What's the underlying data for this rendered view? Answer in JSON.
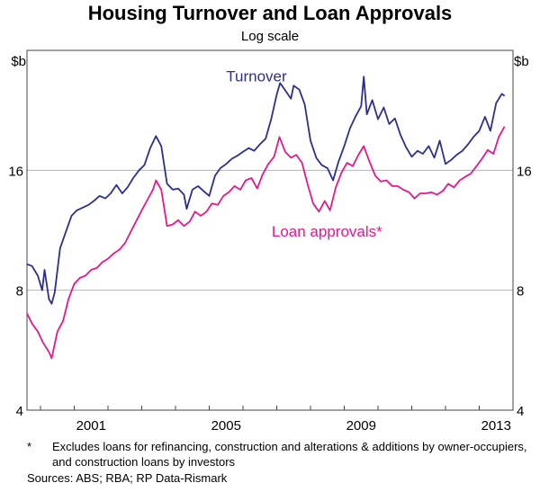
{
  "chart_data": {
    "type": "line",
    "title": "Housing Turnover and Loan Approvals",
    "subtitle": "Log scale",
    "y_unit": "$b",
    "y_scale": "log",
    "ylim": [
      4,
      32
    ],
    "y_ticks": [
      4,
      8,
      16
    ],
    "xlim": [
      1999.6,
      2014.0
    ],
    "x_ticks": [
      2001,
      2005,
      2009,
      2013
    ],
    "grid": "horizontal",
    "series": [
      {
        "name": "Turnover",
        "color": "#2b2f8f",
        "points": [
          [
            1999.6,
            9.3
          ],
          [
            1999.75,
            9.2
          ],
          [
            1999.92,
            8.7
          ],
          [
            2000.05,
            8.0
          ],
          [
            2000.12,
            9.0
          ],
          [
            2000.25,
            7.6
          ],
          [
            2000.33,
            7.4
          ],
          [
            2000.42,
            7.9
          ],
          [
            2000.58,
            10.2
          ],
          [
            2000.75,
            11.2
          ],
          [
            2000.92,
            12.3
          ],
          [
            2001.08,
            12.7
          ],
          [
            2001.25,
            12.9
          ],
          [
            2001.42,
            13.1
          ],
          [
            2001.58,
            13.4
          ],
          [
            2001.75,
            13.8
          ],
          [
            2001.92,
            13.6
          ],
          [
            2002.08,
            14.0
          ],
          [
            2002.25,
            14.7
          ],
          [
            2002.42,
            14.0
          ],
          [
            2002.58,
            14.5
          ],
          [
            2002.75,
            15.3
          ],
          [
            2002.92,
            16.0
          ],
          [
            2003.08,
            16.5
          ],
          [
            2003.25,
            18.2
          ],
          [
            2003.42,
            19.5
          ],
          [
            2003.58,
            18.4
          ],
          [
            2003.75,
            14.8
          ],
          [
            2003.92,
            14.3
          ],
          [
            2004.08,
            14.4
          ],
          [
            2004.25,
            13.9
          ],
          [
            2004.33,
            12.8
          ],
          [
            2004.5,
            14.3
          ],
          [
            2004.67,
            14.6
          ],
          [
            2004.83,
            14.2
          ],
          [
            2005.0,
            13.8
          ],
          [
            2005.17,
            15.5
          ],
          [
            2005.33,
            16.2
          ],
          [
            2005.5,
            16.6
          ],
          [
            2005.67,
            17.1
          ],
          [
            2005.83,
            17.4
          ],
          [
            2006.0,
            17.8
          ],
          [
            2006.17,
            18.2
          ],
          [
            2006.33,
            17.9
          ],
          [
            2006.5,
            18.6
          ],
          [
            2006.67,
            19.2
          ],
          [
            2006.83,
            21.4
          ],
          [
            2007.0,
            24.8
          ],
          [
            2007.1,
            26.5
          ],
          [
            2007.25,
            25.4
          ],
          [
            2007.42,
            24.2
          ],
          [
            2007.5,
            26.1
          ],
          [
            2007.67,
            25.5
          ],
          [
            2007.83,
            23.4
          ],
          [
            2008.0,
            19.0
          ],
          [
            2008.17,
            17.2
          ],
          [
            2008.33,
            16.5
          ],
          [
            2008.5,
            16.2
          ],
          [
            2008.67,
            15.1
          ],
          [
            2008.83,
            16.8
          ],
          [
            2009.0,
            18.4
          ],
          [
            2009.17,
            20.4
          ],
          [
            2009.33,
            21.8
          ],
          [
            2009.5,
            23.2
          ],
          [
            2009.58,
            27.5
          ],
          [
            2009.67,
            22.1
          ],
          [
            2009.83,
            24.0
          ],
          [
            2010.0,
            21.5
          ],
          [
            2010.17,
            23.0
          ],
          [
            2010.33,
            20.9
          ],
          [
            2010.5,
            21.6
          ],
          [
            2010.67,
            19.6
          ],
          [
            2010.83,
            18.3
          ],
          [
            2011.0,
            17.3
          ],
          [
            2011.17,
            17.9
          ],
          [
            2011.33,
            17.6
          ],
          [
            2011.5,
            18.4
          ],
          [
            2011.67,
            17.2
          ],
          [
            2011.83,
            19.0
          ],
          [
            2012.0,
            16.6
          ],
          [
            2012.17,
            17.0
          ],
          [
            2012.33,
            17.5
          ],
          [
            2012.5,
            17.9
          ],
          [
            2012.67,
            18.6
          ],
          [
            2012.83,
            19.4
          ],
          [
            2013.0,
            20.1
          ],
          [
            2013.17,
            21.8
          ],
          [
            2013.33,
            20.1
          ],
          [
            2013.5,
            23.6
          ],
          [
            2013.67,
            24.9
          ],
          [
            2013.75,
            24.6
          ]
        ]
      },
      {
        "name": "Loan approvals*",
        "color": "#e8178c",
        "points": [
          [
            1999.6,
            7.0
          ],
          [
            1999.75,
            6.6
          ],
          [
            1999.92,
            6.3
          ],
          [
            2000.08,
            5.9
          ],
          [
            2000.25,
            5.6
          ],
          [
            2000.33,
            5.4
          ],
          [
            2000.5,
            6.3
          ],
          [
            2000.67,
            6.7
          ],
          [
            2000.83,
            7.6
          ],
          [
            2001.0,
            8.3
          ],
          [
            2001.17,
            8.6
          ],
          [
            2001.33,
            8.7
          ],
          [
            2001.5,
            9.0
          ],
          [
            2001.67,
            9.1
          ],
          [
            2001.83,
            9.4
          ],
          [
            2002.0,
            9.6
          ],
          [
            2002.17,
            9.9
          ],
          [
            2002.33,
            10.1
          ],
          [
            2002.5,
            10.5
          ],
          [
            2002.67,
            11.2
          ],
          [
            2002.83,
            11.9
          ],
          [
            2003.0,
            12.7
          ],
          [
            2003.17,
            13.5
          ],
          [
            2003.33,
            14.3
          ],
          [
            2003.42,
            15.1
          ],
          [
            2003.58,
            14.3
          ],
          [
            2003.75,
            11.6
          ],
          [
            2003.92,
            11.7
          ],
          [
            2004.08,
            12.0
          ],
          [
            2004.25,
            11.6
          ],
          [
            2004.42,
            11.9
          ],
          [
            2004.58,
            12.6
          ],
          [
            2004.75,
            12.3
          ],
          [
            2004.92,
            12.6
          ],
          [
            2005.08,
            13.2
          ],
          [
            2005.25,
            13.1
          ],
          [
            2005.42,
            13.8
          ],
          [
            2005.58,
            14.1
          ],
          [
            2005.75,
            14.6
          ],
          [
            2005.92,
            14.3
          ],
          [
            2006.08,
            15.1
          ],
          [
            2006.25,
            15.3
          ],
          [
            2006.42,
            14.4
          ],
          [
            2006.58,
            15.6
          ],
          [
            2006.75,
            16.6
          ],
          [
            2006.92,
            17.3
          ],
          [
            2007.08,
            19.4
          ],
          [
            2007.25,
            17.8
          ],
          [
            2007.42,
            17.2
          ],
          [
            2007.58,
            17.5
          ],
          [
            2007.75,
            16.7
          ],
          [
            2007.92,
            14.7
          ],
          [
            2008.08,
            13.2
          ],
          [
            2008.25,
            12.6
          ],
          [
            2008.42,
            13.4
          ],
          [
            2008.58,
            12.7
          ],
          [
            2008.75,
            14.5
          ],
          [
            2008.92,
            15.8
          ],
          [
            2009.08,
            16.7
          ],
          [
            2009.25,
            16.4
          ],
          [
            2009.42,
            17.5
          ],
          [
            2009.58,
            18.4
          ],
          [
            2009.75,
            16.8
          ],
          [
            2009.92,
            15.5
          ],
          [
            2010.08,
            15.0
          ],
          [
            2010.25,
            15.1
          ],
          [
            2010.42,
            14.6
          ],
          [
            2010.58,
            14.6
          ],
          [
            2010.75,
            14.3
          ],
          [
            2010.92,
            14.1
          ],
          [
            2011.08,
            13.6
          ],
          [
            2011.25,
            14.0
          ],
          [
            2011.42,
            14.0
          ],
          [
            2011.58,
            14.1
          ],
          [
            2011.75,
            13.9
          ],
          [
            2011.92,
            14.2
          ],
          [
            2012.08,
            14.8
          ],
          [
            2012.25,
            14.5
          ],
          [
            2012.42,
            15.1
          ],
          [
            2012.58,
            15.4
          ],
          [
            2012.75,
            15.7
          ],
          [
            2012.92,
            16.4
          ],
          [
            2013.08,
            17.1
          ],
          [
            2013.25,
            18.0
          ],
          [
            2013.42,
            17.6
          ],
          [
            2013.58,
            19.4
          ],
          [
            2013.75,
            20.6
          ]
        ],
        "label_position": "below-right of peak 2006"
      }
    ],
    "annotations": [
      "Turnover",
      "Loan approvals*"
    ]
  },
  "footnote": {
    "marker": "*",
    "text": "Excludes loans for refinancing, construction and alterations & additions by owner-occupiers, and construction loans by investors"
  },
  "sources": "Sources: ABS; RBA; RP Data-Rismark"
}
